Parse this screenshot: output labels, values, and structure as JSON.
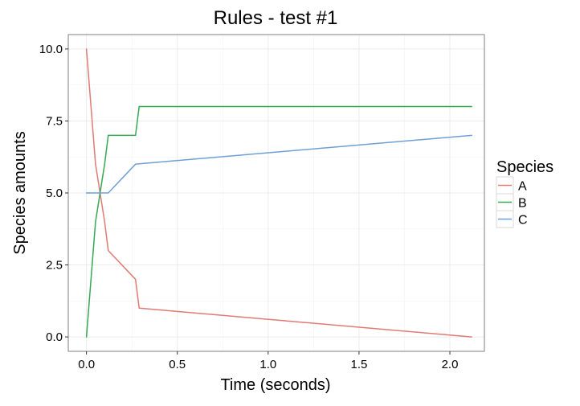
{
  "chart_data": {
    "type": "line",
    "title": "Rules - test #1",
    "xlabel": "Time (seconds)",
    "ylabel": "Species amounts",
    "xlim": [
      -0.1,
      2.19
    ],
    "ylim": [
      -0.5,
      10.5
    ],
    "x_ticks": [
      {
        "value": 0.0,
        "label": "0.0"
      },
      {
        "value": 0.5,
        "label": "0.5"
      },
      {
        "value": 1.0,
        "label": "1.0"
      },
      {
        "value": 1.5,
        "label": "1.5"
      },
      {
        "value": 2.0,
        "label": "2.0"
      }
    ],
    "y_ticks": [
      {
        "value": 0.0,
        "label": "0.0"
      },
      {
        "value": 2.5,
        "label": "2.5"
      },
      {
        "value": 5.0,
        "label": "5.0"
      },
      {
        "value": 7.5,
        "label": "7.5"
      },
      {
        "value": 10.0,
        "label": "10.0"
      }
    ],
    "grid": true,
    "legend": {
      "title": "Species",
      "position": "right"
    },
    "series": [
      {
        "name": "A",
        "color": "#E07A73",
        "points": [
          [
            0.0,
            10.0
          ],
          [
            0.05,
            6.0
          ],
          [
            0.1,
            4.0
          ],
          [
            0.12,
            3.0
          ],
          [
            0.27,
            2.0
          ],
          [
            0.29,
            1.0
          ],
          [
            2.12,
            0.0
          ]
        ]
      },
      {
        "name": "B",
        "color": "#35A853",
        "points": [
          [
            0.0,
            0.0
          ],
          [
            0.05,
            4.0
          ],
          [
            0.1,
            6.0
          ],
          [
            0.12,
            7.0
          ],
          [
            0.27,
            7.0
          ],
          [
            0.29,
            8.0
          ],
          [
            2.12,
            8.0
          ]
        ]
      },
      {
        "name": "C",
        "color": "#6F9FD8",
        "points": [
          [
            0.0,
            5.0
          ],
          [
            0.12,
            5.0
          ],
          [
            0.27,
            6.0
          ],
          [
            2.12,
            7.0
          ]
        ]
      }
    ]
  }
}
